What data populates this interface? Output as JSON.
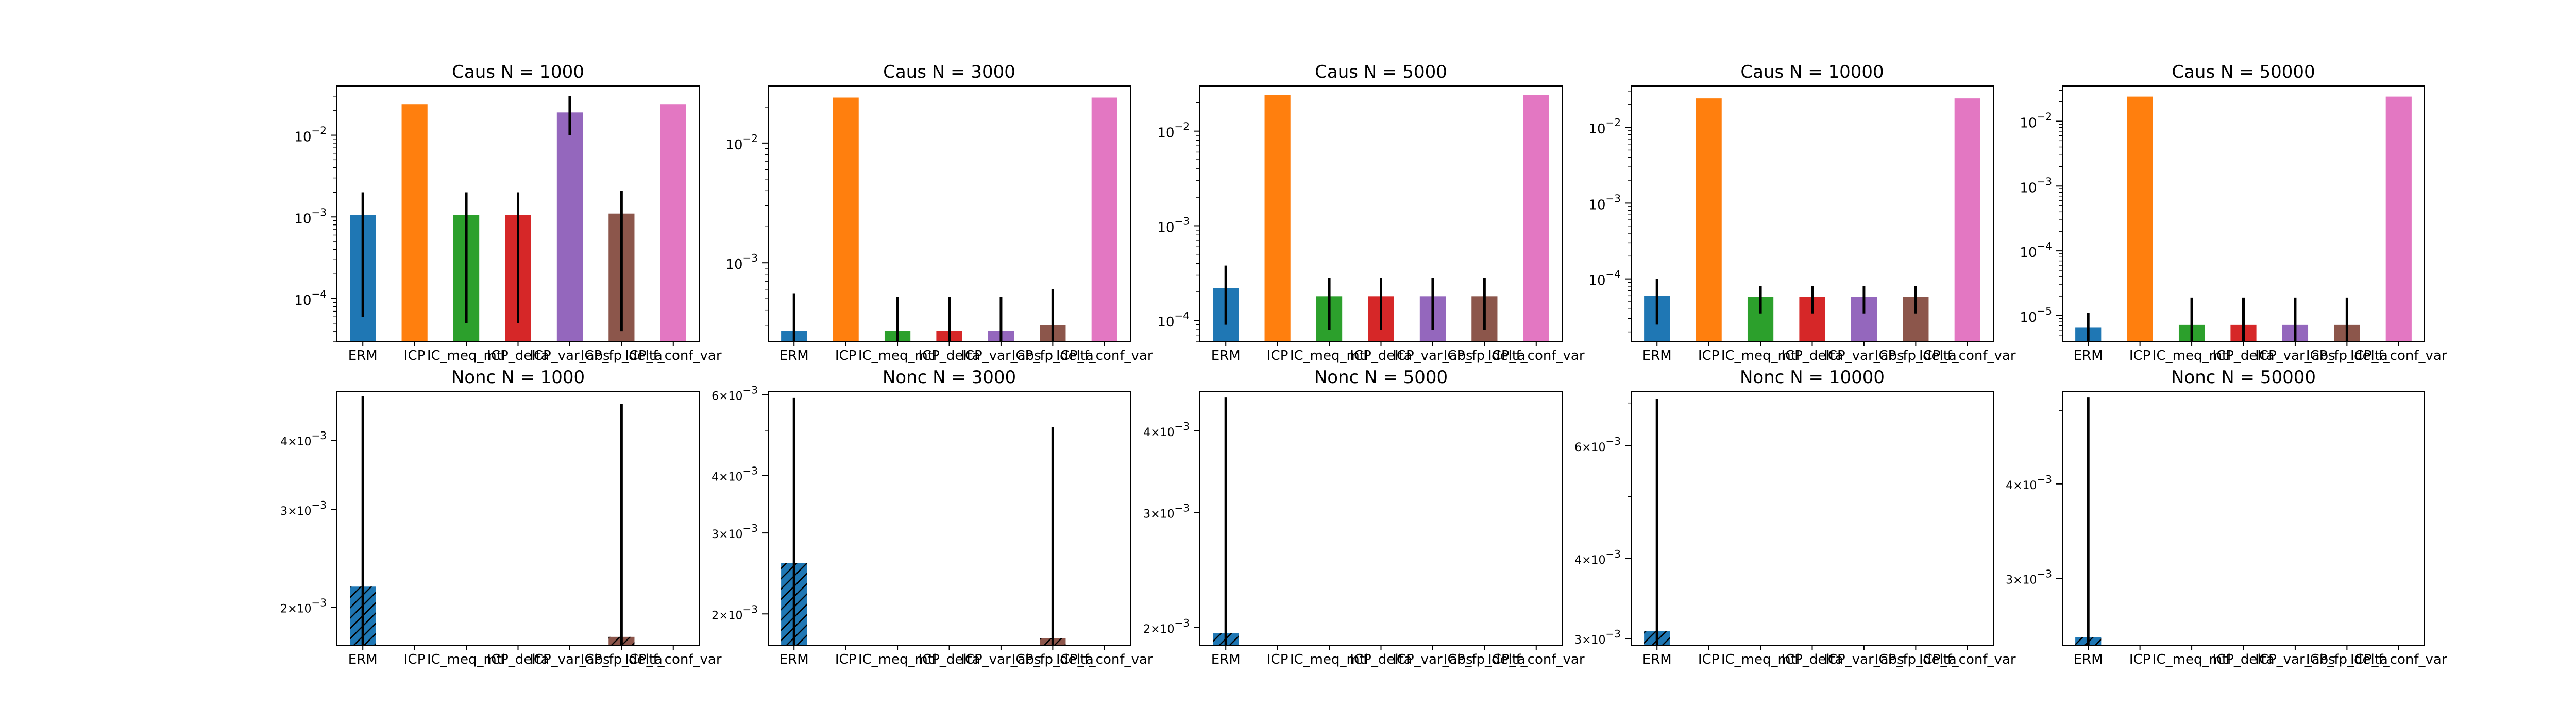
{
  "categories": [
    "ERM",
    "ICP",
    "IC_meq_mtl",
    "ICP_delta",
    "ICP_var_abs",
    "ICP_fp_delta",
    "ICP_f_conf_var"
  ],
  "colors": [
    "#1f77b4",
    "#ff7f0e",
    "#2ca02c",
    "#d62728",
    "#9467bd",
    "#8c564b",
    "#e377c2"
  ],
  "chart_data": [
    {
      "type": "bar",
      "title": "Caus N = 1000",
      "yscale": "log",
      "ylim": [
        3e-05,
        0.04
      ],
      "major_ticks": [
        {
          "value": 0.0001,
          "label": "10−4"
        },
        {
          "value": 0.001,
          "label": "10−3"
        },
        {
          "value": 0.01,
          "label": "10−2"
        }
      ],
      "hatched": false,
      "values": [
        0.00105,
        0.024,
        0.00105,
        0.00105,
        0.019,
        0.0011,
        0.024
      ],
      "err": [
        [
          6e-05,
          0.002
        ],
        null,
        [
          5e-05,
          0.002
        ],
        [
          5e-05,
          0.002
        ],
        [
          0.01,
          0.03
        ],
        [
          4e-05,
          0.0021
        ],
        null
      ]
    },
    {
      "type": "bar",
      "title": "Caus N = 3000",
      "yscale": "log",
      "ylim": [
        0.00022,
        0.03
      ],
      "major_ticks": [
        {
          "value": 0.001,
          "label": "10−3"
        },
        {
          "value": 0.01,
          "label": "10−2"
        }
      ],
      "hatched": false,
      "values": [
        0.00027,
        0.024,
        0.00027,
        0.00027,
        0.00027,
        0.0003,
        0.024
      ],
      "err": [
        [
          0.00022,
          0.00055
        ],
        null,
        [
          0.00022,
          0.00052
        ],
        [
          0.00022,
          0.00052
        ],
        [
          0.00022,
          0.00052
        ],
        [
          0.00022,
          0.0006
        ],
        null
      ]
    },
    {
      "type": "bar",
      "title": "Caus N = 5000",
      "yscale": "log",
      "ylim": [
        6e-05,
        0.03
      ],
      "major_ticks": [
        {
          "value": 0.0001,
          "label": "10−4"
        },
        {
          "value": 0.001,
          "label": "10−3"
        },
        {
          "value": 0.01,
          "label": "10−2"
        }
      ],
      "hatched": false,
      "values": [
        0.00022,
        0.024,
        0.00018,
        0.00018,
        0.00018,
        0.00018,
        0.024
      ],
      "err": [
        [
          9e-05,
          0.00038
        ],
        null,
        [
          8e-05,
          0.00028
        ],
        [
          8e-05,
          0.00028
        ],
        [
          8e-05,
          0.00028
        ],
        [
          8e-05,
          0.00028
        ],
        null
      ]
    },
    {
      "type": "bar",
      "title": "Caus N = 10000",
      "yscale": "log",
      "ylim": [
        1.5e-05,
        0.035
      ],
      "major_ticks": [
        {
          "value": 0.0001,
          "label": "10−4"
        },
        {
          "value": 0.001,
          "label": "10−3"
        },
        {
          "value": 0.01,
          "label": "10−2"
        }
      ],
      "hatched": false,
      "values": [
        6e-05,
        0.024,
        5.8e-05,
        5.8e-05,
        5.8e-05,
        5.8e-05,
        0.024
      ],
      "err": [
        [
          2.5e-05,
          0.0001
        ],
        null,
        [
          3.5e-05,
          8e-05
        ],
        [
          3.5e-05,
          8e-05
        ],
        [
          3.5e-05,
          8e-05
        ],
        [
          3.5e-05,
          8e-05
        ],
        null
      ]
    },
    {
      "type": "bar",
      "title": "Caus N = 50000",
      "yscale": "log",
      "ylim": [
        4e-06,
        0.035
      ],
      "major_ticks": [
        {
          "value": 1e-05,
          "label": "10−5"
        },
        {
          "value": 0.0001,
          "label": "10−4"
        },
        {
          "value": 0.001,
          "label": "10−3"
        },
        {
          "value": 0.01,
          "label": "10−2"
        }
      ],
      "hatched": false,
      "values": [
        6.5e-06,
        0.024,
        7.2e-06,
        7.2e-06,
        7.2e-06,
        7.2e-06,
        0.024
      ],
      "err": [
        [
          4e-06,
          1.1e-05
        ],
        null,
        [
          4e-06,
          1.9e-05
        ],
        [
          4e-06,
          1.9e-05
        ],
        [
          4e-06,
          1.9e-05
        ],
        [
          4e-06,
          1.9e-05
        ],
        null
      ]
    },
    {
      "type": "bar",
      "title": "Nonc N = 1000",
      "yscale": "log",
      "ylim": [
        0.00171,
        0.0049
      ],
      "major_ticks": [
        {
          "value": 0.002,
          "label": "2×10−3"
        },
        {
          "value": 0.003,
          "label": "3×10−3"
        },
        {
          "value": 0.004,
          "label": "4×10−3"
        }
      ],
      "hatched": true,
      "values": [
        0.00218,
        null,
        null,
        null,
        null,
        0.00177,
        null
      ],
      "err": [
        [
          0.00171,
          0.0048
        ],
        null,
        null,
        null,
        null,
        [
          0.00171,
          0.00465
        ],
        null
      ]
    },
    {
      "type": "bar",
      "title": "Nonc N = 3000",
      "yscale": "log",
      "ylim": [
        0.00171,
        0.0061
      ],
      "major_ticks": [
        {
          "value": 0.002,
          "label": "2×10−3"
        },
        {
          "value": 0.003,
          "label": "3×10−3"
        },
        {
          "value": 0.004,
          "label": "4×10−3"
        },
        {
          "value": 0.006,
          "label": "6×10−3"
        }
      ],
      "hatched": true,
      "values": [
        0.00258,
        null,
        null,
        null,
        null,
        0.00177,
        null
      ],
      "err": [
        [
          0.00171,
          0.0059
        ],
        null,
        null,
        null,
        null,
        [
          0.00171,
          0.0051
        ],
        null
      ]
    },
    {
      "type": "bar",
      "title": "Nonc N = 5000",
      "yscale": "log",
      "ylim": [
        0.00188,
        0.0046
      ],
      "major_ticks": [
        {
          "value": 0.002,
          "label": "2×10−3"
        },
        {
          "value": 0.003,
          "label": "3×10−3"
        },
        {
          "value": 0.004,
          "label": "4×10−3"
        }
      ],
      "hatched": true,
      "values": [
        0.00196,
        null,
        null,
        null,
        null,
        null,
        null
      ],
      "err": [
        [
          0.00188,
          0.0045
        ],
        null,
        null,
        null,
        null,
        null,
        null
      ]
    },
    {
      "type": "bar",
      "title": "Nonc N = 10000",
      "yscale": "log",
      "ylim": [
        0.00293,
        0.0073
      ],
      "major_ticks": [
        {
          "value": 0.003,
          "label": "3×10−3"
        },
        {
          "value": 0.004,
          "label": "4×10−3"
        },
        {
          "value": 0.006,
          "label": "6×10−3"
        }
      ],
      "hatched": true,
      "values": [
        0.00308,
        null,
        null,
        null,
        null,
        null,
        null
      ],
      "err": [
        [
          0.00293,
          0.0071
        ],
        null,
        null,
        null,
        null,
        null,
        null
      ]
    },
    {
      "type": "bar",
      "title": "Nonc N = 50000",
      "yscale": "log",
      "ylim": [
        0.00245,
        0.0053
      ],
      "major_ticks": [
        {
          "value": 0.003,
          "label": "3×10−3"
        },
        {
          "value": 0.004,
          "label": "4×10−3"
        }
      ],
      "hatched": true,
      "values": [
        0.00251,
        null,
        null,
        null,
        null,
        null,
        null
      ],
      "err": [
        [
          0.00245,
          0.0052
        ],
        null,
        null,
        null,
        null,
        null,
        null
      ]
    }
  ]
}
